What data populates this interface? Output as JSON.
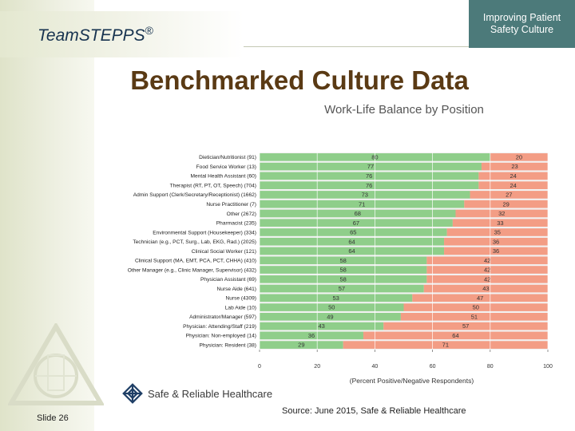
{
  "header": {
    "brand": "Team",
    "brand_bold": "STEPPS",
    "brand_mark": "®",
    "corner_line1": "Improving Patient",
    "corner_line2": "Safety Culture"
  },
  "slide": {
    "title": "Benchmarked Culture Data",
    "number": "Slide 26"
  },
  "footer": {
    "org_name": "Safe & Reliable Healthcare",
    "source": "Source: June 2015, Safe & Reliable Healthcare"
  },
  "colors": {
    "positive": "#8fce8a",
    "negative": "#f39d85",
    "accent": "#4c7a7a",
    "title": "#5a3a14"
  },
  "chart_data": {
    "type": "bar",
    "orientation": "horizontal",
    "stacked": true,
    "title": "Work-Life Balance by Position",
    "xlabel": "(Percent Positive/Negative Respondents)",
    "xlim": [
      0,
      100
    ],
    "xticks": [
      "0",
      "20",
      "40",
      "60",
      "80",
      "100"
    ],
    "grid": true,
    "categories": [
      "Dietician/Nutritionist (91)",
      "Food Service Worker (13)",
      "Mental Health Assistant (60)",
      "Therapist (RT, PT, OT, Speech) (704)",
      "Admin Support (Clerk/Secretary/Receptionist) (1662)",
      "Nurse Practitioner (7)",
      "Other (2672)",
      "Pharmacist (235)",
      "Environmental Support (Housekeeper) (334)",
      "Technician (e.g., PCT, Surg., Lab, EKG, Rad.) (2025)",
      "Clinical Social Worker (121)",
      "Clinical Support (MA, EMT, PCA, PCT, CHHA) (410)",
      "Other Manager (e.g., Clinic Manager, Supervisor) (432)",
      "Physician Assistant (69)",
      "Nurse Aide (641)",
      "Nurse (4309)",
      "Lab Aide (10)",
      "Administrator/Manager (597)",
      "Physician: Attending/Staff (219)",
      "Physician: Non-employed (14)",
      "Physician: Resident (38)"
    ],
    "series": [
      {
        "values": [
          80,
          77,
          76,
          76,
          73,
          71,
          68,
          67,
          65,
          64,
          64,
          58,
          58,
          58,
          57,
          53,
          50,
          49,
          43,
          36,
          29
        ]
      },
      {
        "values": [
          20,
          23,
          24,
          24,
          27,
          29,
          32,
          33,
          35,
          36,
          36,
          42,
          42,
          42,
          43,
          47,
          50,
          51,
          57,
          64,
          71
        ]
      }
    ]
  }
}
